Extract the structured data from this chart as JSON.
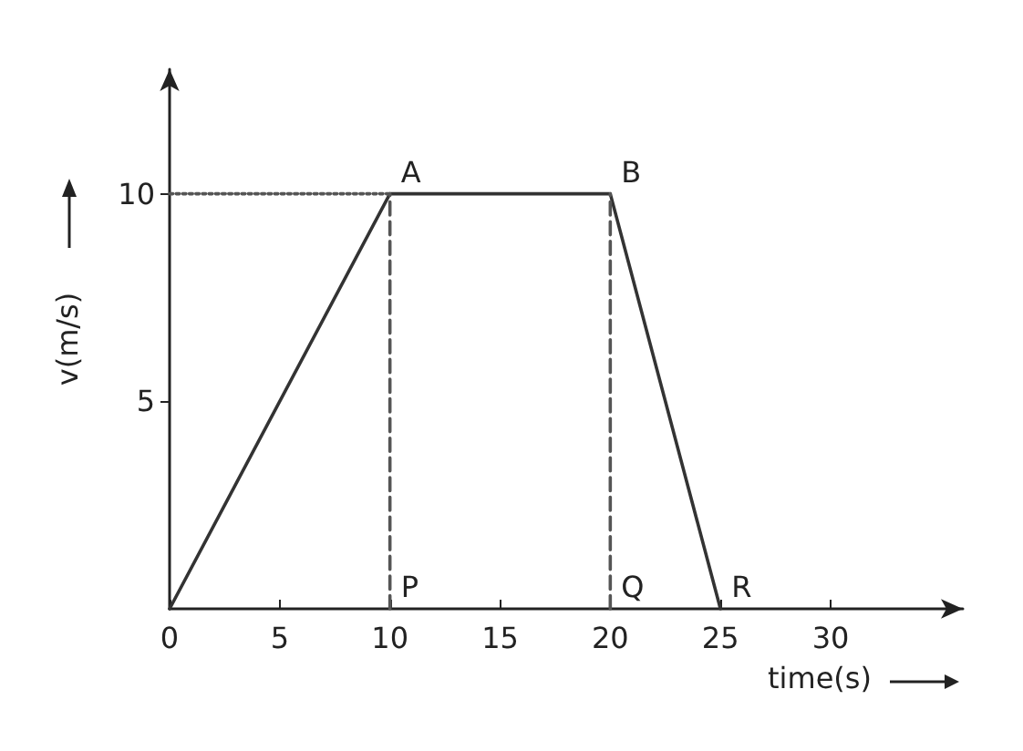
{
  "chart_data": {
    "type": "line",
    "xlabel": "time(s)",
    "ylabel": "v(m/s)",
    "xlim": [
      0,
      36
    ],
    "xticks": [
      0,
      5,
      10,
      15,
      20,
      25,
      30
    ],
    "ylim": [
      0,
      13
    ],
    "yticks": [
      5,
      10
    ],
    "grid": false,
    "marker": "none",
    "series": [
      {
        "color": "#333333",
        "x": [
          0,
          10,
          20,
          25
        ],
        "values": [
          0,
          10,
          10,
          0
        ],
        "line_style": "solid"
      },
      {
        "color": "#555555",
        "x": [
          0,
          10
        ],
        "values": [
          10,
          10
        ],
        "line_style": "dotted"
      },
      {
        "color": "#555555",
        "x": [
          10,
          10
        ],
        "values": [
          0,
          10
        ],
        "line_style": "dashed"
      },
      {
        "color": "#555555",
        "x": [
          20,
          20
        ],
        "values": [
          0,
          10
        ],
        "line_style": "dashed"
      }
    ],
    "annotations": [
      {
        "text": "A",
        "x": 10,
        "y": 10
      },
      {
        "text": "B",
        "x": 20,
        "y": 10
      },
      {
        "text": "P",
        "x": 10,
        "y": 0
      },
      {
        "text": "Q",
        "x": 20,
        "y": 0
      },
      {
        "text": "R",
        "x": 25,
        "y": 0
      }
    ]
  }
}
